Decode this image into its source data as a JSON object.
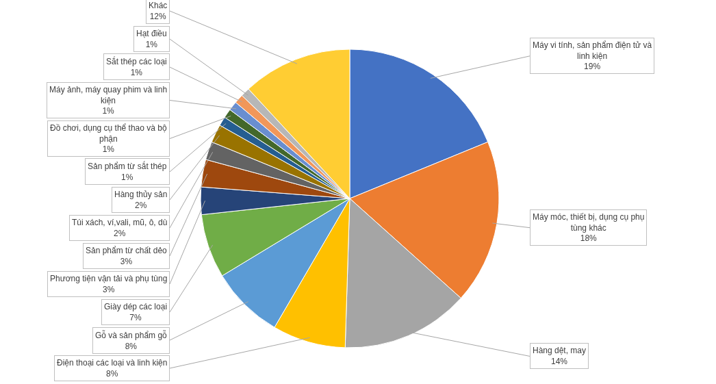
{
  "chart_data": {
    "type": "pie",
    "categories": [
      "Máy vi tính, sản phẩm điện tử và linh kiện",
      "Máy móc, thiết bị, dụng cụ phụ tùng khác",
      "Hàng dệt, may",
      "Điện thoại các loại và linh kiện",
      "Gỗ và sản phẩm gỗ",
      "Giày dép các loại",
      "Phương tiện vận tải và phụ tùng",
      "Sản phẩm từ chất dẻo",
      "Túi xách, ví,vali, mũ, ô, dù",
      "Hàng thủy sản",
      "Sản phẩm từ sắt thép",
      "Đồ chơi, dụng cụ thể thao và bộ phận",
      "Máy ảnh, máy quay phim và linh kiện",
      "Sắt thép các loại",
      "Hạt điều",
      "Khác"
    ],
    "values": [
      19,
      18,
      14,
      8,
      8,
      7,
      3,
      3,
      2,
      2,
      1,
      1,
      1,
      1,
      1,
      12
    ],
    "colors": [
      "#4472c4",
      "#ed7d31",
      "#a5a5a5",
      "#ffc000",
      "#5b9bd5",
      "#70ad47",
      "#264478",
      "#9e480e",
      "#636363",
      "#997300",
      "#255e91",
      "#43682b",
      "#698ed0",
      "#f1975a",
      "#b7b7b7",
      "#ffcd33"
    ],
    "value_labels": [
      "19%",
      "18%",
      "14%",
      "8%",
      "8%",
      "7%",
      "3%",
      "3%",
      "2%",
      "2%",
      "1%",
      "1%",
      "1%",
      "1%",
      "1%",
      "12%"
    ],
    "legend": false
  }
}
